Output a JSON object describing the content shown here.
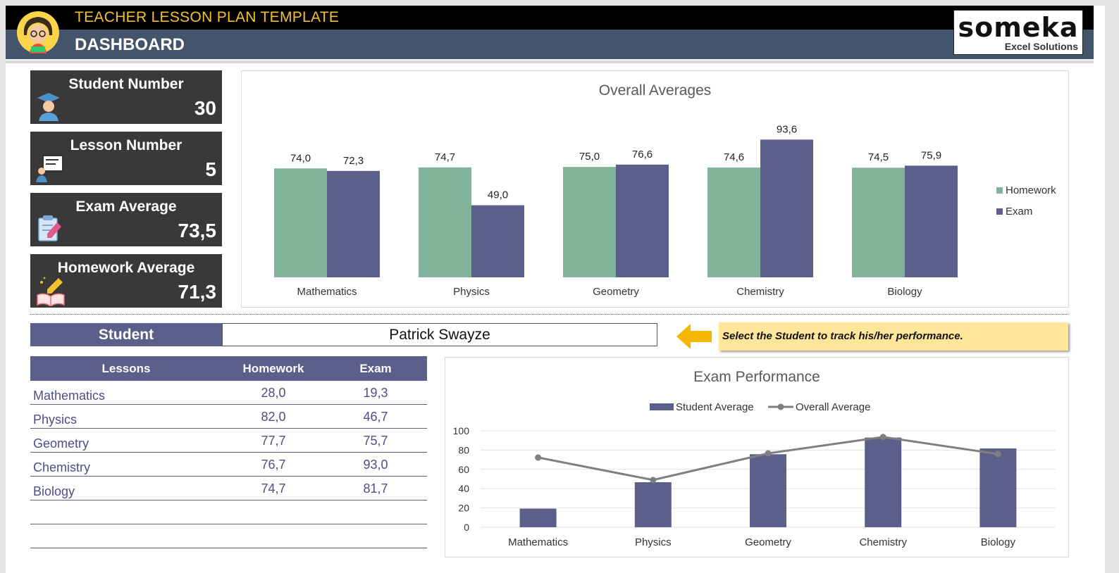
{
  "header": {
    "app_title": "TEACHER LESSON PLAN TEMPLATE",
    "page_title": "DASHBOARD",
    "logo_text": "someka",
    "logo_tagline": "Excel Solutions"
  },
  "kpis": [
    {
      "label": "Student Number",
      "value": "30",
      "icon": "graduate-icon"
    },
    {
      "label": "Lesson Number",
      "value": "5",
      "icon": "teacher-board-icon"
    },
    {
      "label": "Exam Average",
      "value": "73,5",
      "icon": "exam-paper-icon"
    },
    {
      "label": "Homework Average",
      "value": "71,3",
      "icon": "homework-book-icon"
    }
  ],
  "student": {
    "label": "Student",
    "selected": "Patrick Swayze",
    "hint": "Select the Student to track his/her performance."
  },
  "lessons_table": {
    "headers": [
      "Lessons",
      "Homework",
      "Exam"
    ],
    "rows": [
      [
        "Mathematics",
        "28,0",
        "19,3"
      ],
      [
        "Physics",
        "82,0",
        "46,7"
      ],
      [
        "Geometry",
        "77,7",
        "75,7"
      ],
      [
        "Chemistry",
        "76,7",
        "93,0"
      ],
      [
        "Biology",
        "74,7",
        "81,7"
      ],
      [
        "",
        "",
        ""
      ],
      [
        "",
        "",
        ""
      ]
    ]
  },
  "colors": {
    "homework": "#81b29a",
    "exam": "#5c5f8a",
    "overall_line": "#7f7f7f",
    "header_bg": "#44546a",
    "accent_yellow": "#f5c02e"
  },
  "chart_data": [
    {
      "type": "bar",
      "title": "Overall Averages",
      "categories": [
        "Mathematics",
        "Physics",
        "Geometry",
        "Chemistry",
        "Biology"
      ],
      "series": [
        {
          "name": "Homework",
          "values": [
            74.0,
            74.7,
            75.0,
            74.6,
            74.5
          ],
          "labels": [
            "74,0",
            "74,7",
            "75,0",
            "74,6",
            "74,5"
          ]
        },
        {
          "name": "Exam",
          "values": [
            72.3,
            49.0,
            76.6,
            93.6,
            75.9
          ],
          "labels": [
            "72,3",
            "49,0",
            "76,6",
            "93,6",
            "75,9"
          ]
        }
      ],
      "legend": "right",
      "ylim": [
        0,
        110
      ]
    },
    {
      "type": "bar",
      "title": "Exam Performance",
      "categories": [
        "Mathematics",
        "Physics",
        "Geometry",
        "Chemistry",
        "Biology"
      ],
      "series": [
        {
          "name": "Student Average",
          "type": "bar",
          "values": [
            19.3,
            46.7,
            75.7,
            93.0,
            81.7
          ]
        },
        {
          "name": "Overall Average",
          "type": "line",
          "values": [
            72.3,
            49.0,
            76.6,
            93.6,
            75.9
          ]
        }
      ],
      "yticks": [
        "0",
        "20",
        "40",
        "60",
        "80",
        "100"
      ],
      "ylim": [
        0,
        100
      ],
      "legend": "top",
      "grid": true
    }
  ]
}
